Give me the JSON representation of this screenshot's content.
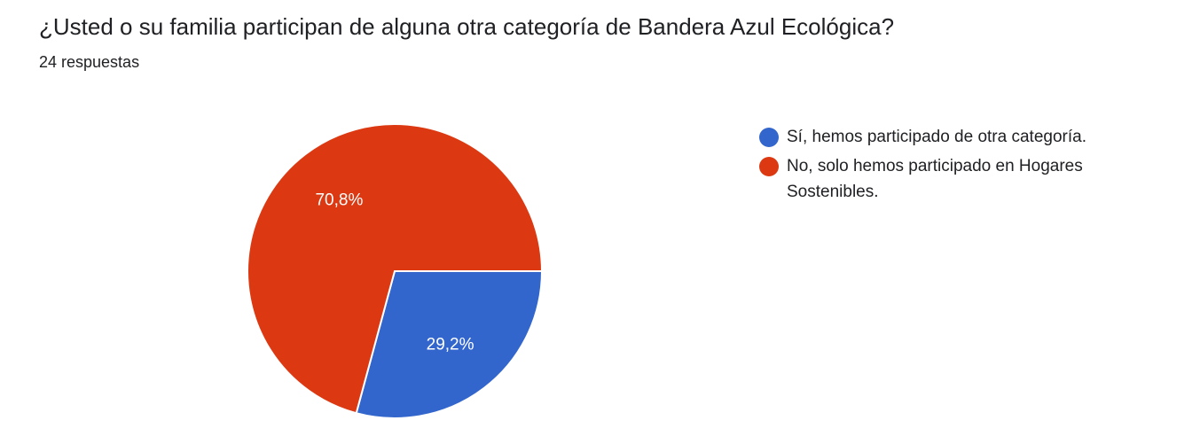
{
  "header": {
    "title": "¿Usted o su familia participan de alguna otra categoría de Bandera Azul Ecológica?",
    "responses": "24 respuestas"
  },
  "chart_data": {
    "type": "pie",
    "slices": [
      {
        "label": "Sí, hemos participado de otra categoría.",
        "value": 29.2,
        "display": "29,2%",
        "color": "#3366CC"
      },
      {
        "label": "No, solo hemos participado en Hogares Sostenibles.",
        "value": 70.8,
        "display": "70,8%",
        "color": "#DC3912"
      }
    ],
    "legend_position": "right"
  }
}
